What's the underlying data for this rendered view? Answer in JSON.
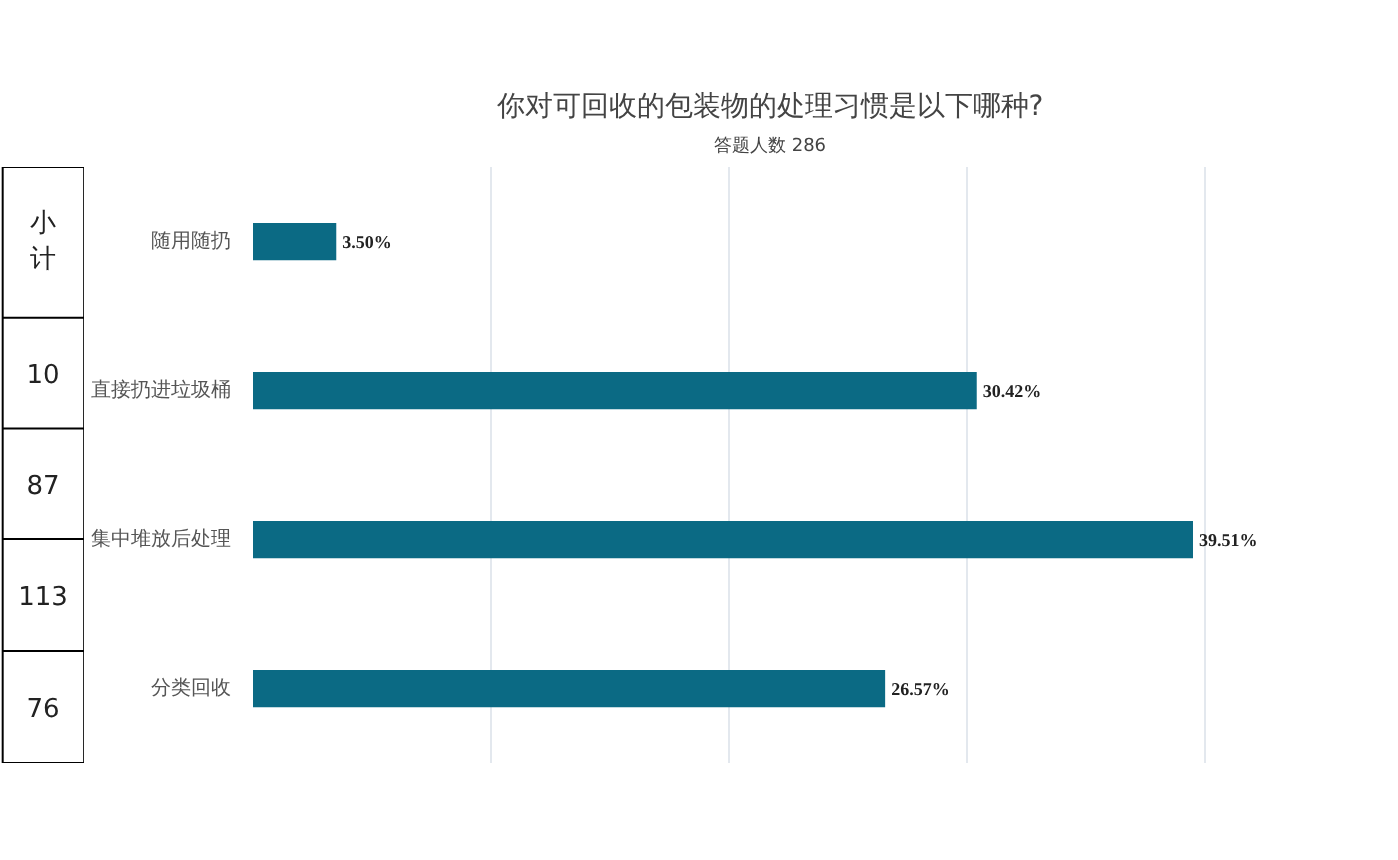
{
  "chart_data": {
    "type": "bar",
    "orientation": "horizontal",
    "title": "你对可回收的包装物的处理习惯是以下哪种?",
    "subtitle": "答题人数 286",
    "categories": [
      "随用随扔",
      "直接扔进垃圾桶",
      "集中堆放后处理",
      "分类回收"
    ],
    "values": [
      3.5,
      30.42,
      39.51,
      26.57
    ],
    "color": "#0b6a84",
    "data_labels": true,
    "value_labels": [
      "3.50%",
      "30.42%",
      "39.51%",
      "26.57%"
    ],
    "grid": "x",
    "tick_labels": "y",
    "annotations": [
      "小计",
      "10",
      "87",
      "113",
      "76"
    ]
  }
}
